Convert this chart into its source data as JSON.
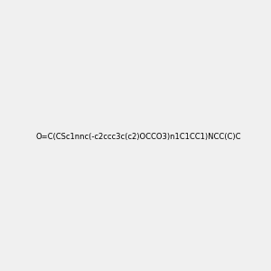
{
  "smiles": "O=C(CSc1nnc(-c2ccc3c(c2)OCCO3)n1C1CC1)NCC(C)C",
  "image_size": 300,
  "background_color": "#f0f0f0",
  "atom_colors": {
    "N": "#0000ff",
    "O": "#ff0000",
    "S": "#ccaa00",
    "H_on_N": "#008080"
  }
}
